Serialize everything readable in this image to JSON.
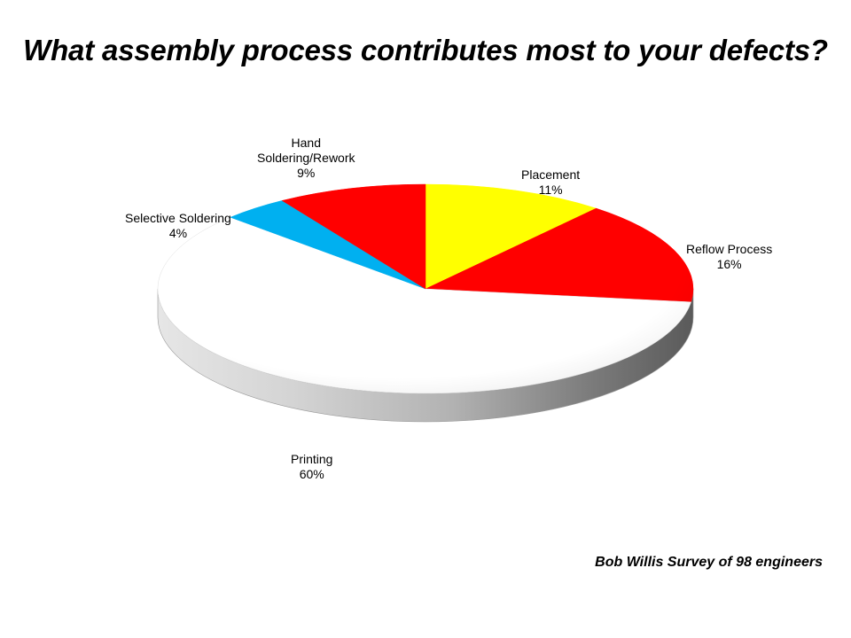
{
  "chart_data": {
    "type": "pie",
    "title": "What assembly process contributes most to your defects?",
    "slices": [
      {
        "label_lines": [
          "Placement"
        ],
        "value": 11,
        "value_label": "11%",
        "color": "#ffff00"
      },
      {
        "label_lines": [
          "Reflow Process"
        ],
        "value": 16,
        "value_label": "16%",
        "color": "#ff0000"
      },
      {
        "label_lines": [
          "Printing"
        ],
        "value": 60,
        "value_label": "60%",
        "color": "#ffffff"
      },
      {
        "label_lines": [
          "Selective Soldering"
        ],
        "value": 4,
        "value_label": "4%",
        "color": "#00b0f0"
      },
      {
        "label_lines": [
          "Hand",
          "Soldering/Rework"
        ],
        "value": 9,
        "value_label": "9%",
        "color": "#ff0000"
      }
    ],
    "style": "3d"
  },
  "footer": {
    "source": "Bob Willis Survey of 98 engineers"
  }
}
